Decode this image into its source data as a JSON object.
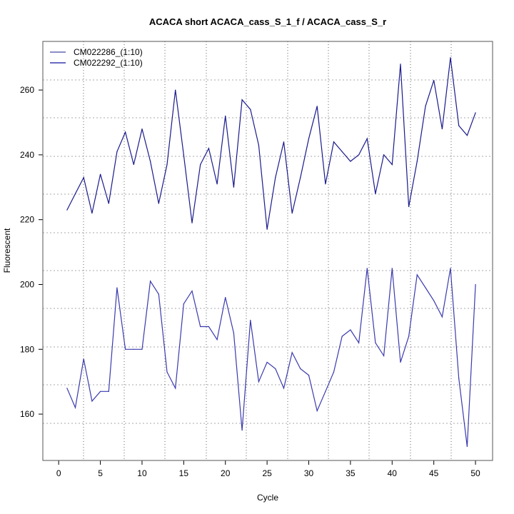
{
  "chart_data": {
    "type": "line",
    "title": "ACACA short ACACA_cass_S_1_f / ACACA_cass_S_r",
    "xlabel": "Cycle",
    "ylabel": "Fluorescent",
    "xlim": [
      -1.9,
      52.05
    ],
    "ylim": [
      145.7,
      275
    ],
    "xticks": [
      0,
      5,
      10,
      15,
      20,
      25,
      30,
      35,
      40,
      45,
      50
    ],
    "yticks": [
      160,
      180,
      200,
      220,
      240,
      260
    ],
    "grid": true,
    "legend_position": "top-left",
    "x": [
      1,
      2,
      3,
      4,
      5,
      6,
      7,
      8,
      9,
      10,
      11,
      12,
      13,
      14,
      15,
      16,
      17,
      18,
      19,
      20,
      21,
      22,
      23,
      24,
      25,
      26,
      27,
      28,
      29,
      30,
      31,
      32,
      33,
      34,
      35,
      36,
      37,
      38,
      39,
      40,
      41,
      42,
      43,
      44,
      45,
      46,
      47,
      48,
      49,
      50
    ],
    "series": [
      {
        "name": "CM022286_(1:10)",
        "color": "#1a1a8c",
        "values": [
          223,
          228,
          233,
          222,
          234,
          225,
          241,
          247,
          237,
          248,
          238,
          225,
          237,
          260,
          240,
          219,
          237,
          242,
          231,
          252,
          230,
          257,
          254,
          243,
          217,
          233,
          244,
          222,
          233,
          245,
          255,
          231,
          244,
          241,
          238,
          240,
          245,
          228,
          240,
          237,
          268,
          224,
          238,
          255,
          263,
          248,
          270,
          249,
          246,
          253
        ]
      },
      {
        "name": "CM022292_(1:10)",
        "color": "#3a3aae",
        "values": [
          168,
          162,
          177,
          164,
          167,
          167,
          199,
          180,
          180,
          180,
          201,
          197,
          173,
          168,
          194,
          198,
          187,
          187,
          183,
          196,
          185,
          155,
          189,
          170,
          176,
          174,
          168,
          179,
          174,
          172,
          161,
          167,
          173,
          184,
          186,
          182,
          205,
          182,
          178,
          205,
          176,
          184,
          203,
          199,
          195,
          190,
          205,
          171,
          150,
          200
        ]
      }
    ]
  }
}
